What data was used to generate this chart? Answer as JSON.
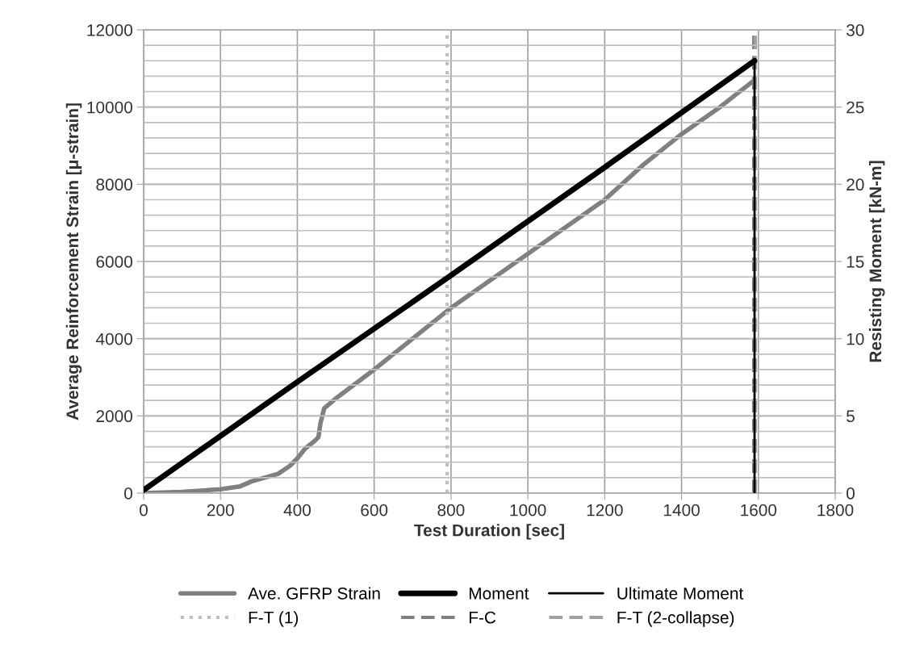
{
  "chart_data": {
    "type": "line",
    "xlabel": "Test Duration [sec]",
    "ylabel": "Average Reinforcement Strain [μ-strain]",
    "y2label": "Resisting Moment [kN-m]",
    "xlim": [
      0,
      1800
    ],
    "xticks": [
      0,
      200,
      400,
      600,
      800,
      1000,
      1200,
      1400,
      1600,
      1800
    ],
    "ylim": [
      0,
      12000
    ],
    "yticks": [
      0,
      2000,
      4000,
      6000,
      8000,
      10000,
      12000
    ],
    "y2lim": [
      0,
      30
    ],
    "y2ticks": [
      0,
      {
        "value": 1,
        "label": null
      },
      {
        "value": 2,
        "label": null
      },
      {
        "value": 3,
        "label": null
      },
      {
        "value": 4,
        "label": null
      },
      5,
      {
        "value": 6,
        "label": null
      },
      {
        "value": 7,
        "label": null
      },
      {
        "value": 8,
        "label": null
      },
      {
        "value": 9,
        "label": null
      },
      10,
      {
        "value": 11,
        "label": null
      },
      {
        "value": 12,
        "label": null
      },
      {
        "value": 13,
        "label": null
      },
      {
        "value": 14,
        "label": null
      },
      15,
      {
        "value": 16,
        "label": null
      },
      {
        "value": 17,
        "label": null
      },
      {
        "value": 18,
        "label": null
      },
      {
        "value": 19,
        "label": null
      },
      20,
      {
        "value": 21,
        "label": null
      },
      {
        "value": 22,
        "label": null
      },
      {
        "value": 23,
        "label": null
      },
      {
        "value": 24,
        "label": null
      },
      25,
      {
        "value": 26,
        "label": null
      },
      {
        "value": 27,
        "label": null
      },
      {
        "value": 28,
        "label": null
      },
      {
        "value": 29,
        "label": null
      },
      30
    ],
    "grid": true,
    "legend": "bottom",
    "marker": "none",
    "series": [
      {
        "name": "Ave. GFRP Strain",
        "color": "#808080",
        "x": [
          0,
          100,
          200,
          250,
          280,
          350,
          380,
          400,
          420,
          445,
          455,
          460,
          470,
          500,
          600,
          700,
          800,
          1000,
          1200,
          1300,
          1400,
          1500,
          1590
        ],
        "values": [
          0,
          30,
          100,
          170,
          300,
          500,
          700,
          900,
          1150,
          1350,
          1450,
          1800,
          2200,
          2450,
          3200,
          4000,
          4800,
          6200,
          7600,
          8500,
          9300,
          10000,
          10700
        ]
      },
      {
        "name": "Moment",
        "color": "#000000",
        "axis": "y2",
        "x": [
          0,
          400,
          800,
          1200,
          1590
        ],
        "values": [
          0.2,
          7.2,
          14.1,
          21.1,
          28
        ]
      },
      {
        "name": "Ultimate Moment",
        "color": "#000000",
        "axis": "y2",
        "x": [
          1590,
          1590
        ],
        "values": [
          0,
          28
        ]
      }
    ],
    "ref_lines": [
      {
        "axis": "x",
        "value": 790,
        "label": "F-T (1)",
        "color": "#bfbfbf",
        "line_style": "dotted"
      },
      {
        "axis": "x",
        "value": 1588,
        "label": "F-C",
        "color": "#808080",
        "line_style": "dashed"
      },
      {
        "axis": "x",
        "value": 1592,
        "label": "F-T (2-collapse)",
        "color": "#a0a0a0",
        "line_style": "dashed"
      }
    ]
  }
}
